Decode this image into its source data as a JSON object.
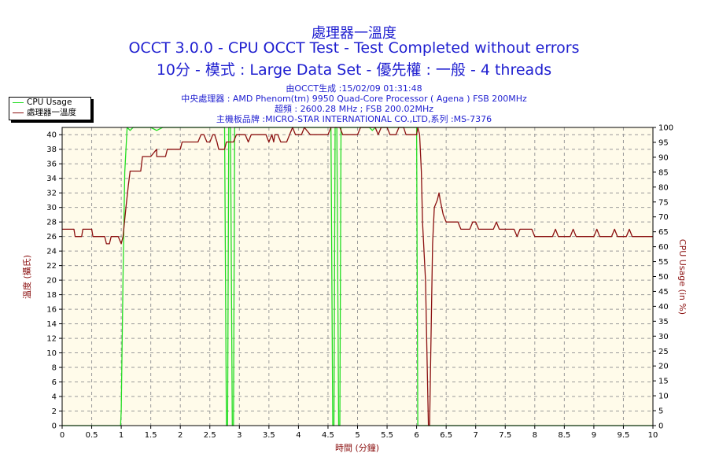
{
  "header": {
    "title_line1": "處理器一溫度",
    "title_line2": "OCCT 3.0.0 - CPU OCCT Test - Test Completed without errors",
    "title_line3": "10分 - 模式 : Large Data Set - 優先權 : 一般 - 4 threads"
  },
  "info": {
    "line1": "由OCCT生成 :15/02/09 01:31:48",
    "line2": "中央處理器 : AMD Phenom(tm) 9950 Quad-Core Processor ( Agena ) FSB 200MHz",
    "line3": "超頻 : 2600.28 MHz ; FSB 200.02MHz",
    "line4": "主機板品牌 :MICRO-STAR INTERNATIONAL CO.,LTD,系列 :MS-7376"
  },
  "legend": {
    "cpu_usage_label": "CPU Usage",
    "temperature_label": "處理器一溫度"
  },
  "colors": {
    "cpu_usage": "#22dd22",
    "temperature": "#8b1010",
    "plot_background": "#fffbea",
    "title_text": "#1f1fd0",
    "axis_label": "#8b1010"
  },
  "chart_data": {
    "type": "line",
    "xlabel": "時間 (分鐘)",
    "ylabel_left": "溫度 (攝氏)",
    "ylabel_right": "CPU Usage (in %)",
    "xlim": [
      0,
      10
    ],
    "ylim_left": [
      0,
      41
    ],
    "ylim_right": [
      0,
      100
    ],
    "x_ticks": [
      "0",
      "0.5",
      "1",
      "1.5",
      "2",
      "2.5",
      "3",
      "3.5",
      "4",
      "4.5",
      "5",
      "5.5",
      "6",
      "6.5",
      "7",
      "7.5",
      "8",
      "8.5",
      "9",
      "9.5",
      "10"
    ],
    "y_left_ticks": [
      "0",
      "2",
      "4",
      "6",
      "8",
      "10",
      "12",
      "14",
      "16",
      "18",
      "20",
      "22",
      "24",
      "26",
      "28",
      "30",
      "32",
      "34",
      "36",
      "38",
      "40"
    ],
    "y_right_ticks": [
      "0",
      "5",
      "10",
      "15",
      "20",
      "25",
      "30",
      "35",
      "40",
      "45",
      "50",
      "55",
      "60",
      "65",
      "70",
      "75",
      "80",
      "85",
      "90",
      "95",
      "100"
    ],
    "grid": true,
    "legend_position": "top-left",
    "series": [
      {
        "name": "處理器一溫度",
        "axis": "left",
        "points": [
          [
            0,
            27
          ],
          [
            0.2,
            27
          ],
          [
            0.22,
            26
          ],
          [
            0.33,
            26
          ],
          [
            0.35,
            27
          ],
          [
            0.5,
            27
          ],
          [
            0.52,
            26
          ],
          [
            0.72,
            26
          ],
          [
            0.75,
            25
          ],
          [
            0.8,
            25
          ],
          [
            0.83,
            26
          ],
          [
            0.95,
            26
          ],
          [
            1,
            25
          ],
          [
            1.03,
            26
          ],
          [
            1.08,
            30
          ],
          [
            1.12,
            33
          ],
          [
            1.15,
            35
          ],
          [
            1.33,
            35
          ],
          [
            1.36,
            37
          ],
          [
            1.5,
            37
          ],
          [
            1.6,
            38
          ],
          [
            1.6,
            37
          ],
          [
            1.75,
            37
          ],
          [
            1.78,
            38
          ],
          [
            2.0,
            38
          ],
          [
            2.03,
            39
          ],
          [
            2.3,
            39
          ],
          [
            2.35,
            40
          ],
          [
            2.4,
            40
          ],
          [
            2.45,
            39
          ],
          [
            2.5,
            39
          ],
          [
            2.55,
            40
          ],
          [
            2.58,
            40
          ],
          [
            2.62,
            39
          ],
          [
            2.65,
            38
          ],
          [
            2.75,
            38
          ],
          [
            2.78,
            39
          ],
          [
            2.9,
            39
          ],
          [
            2.95,
            40
          ],
          [
            3.1,
            40
          ],
          [
            3.15,
            39
          ],
          [
            3.2,
            40
          ],
          [
            3.45,
            40
          ],
          [
            3.5,
            39
          ],
          [
            3.55,
            40
          ],
          [
            3.58,
            39
          ],
          [
            3.6,
            40
          ],
          [
            3.65,
            40
          ],
          [
            3.7,
            39
          ],
          [
            3.8,
            39
          ],
          [
            3.85,
            40
          ],
          [
            3.9,
            41
          ],
          [
            3.95,
            40
          ],
          [
            4.05,
            40
          ],
          [
            4.1,
            41
          ],
          [
            4.2,
            40
          ],
          [
            4.5,
            40
          ],
          [
            4.55,
            41
          ],
          [
            4.7,
            41
          ],
          [
            4.75,
            40
          ],
          [
            5.0,
            40
          ],
          [
            5.05,
            41
          ],
          [
            5.3,
            41
          ],
          [
            5.35,
            40
          ],
          [
            5.4,
            41
          ],
          [
            5.5,
            41
          ],
          [
            5.55,
            40
          ],
          [
            5.65,
            40
          ],
          [
            5.7,
            41
          ],
          [
            5.78,
            41
          ],
          [
            5.82,
            40
          ],
          [
            6.0,
            40
          ],
          [
            6.02,
            41
          ],
          [
            6.05,
            40
          ],
          [
            6.08,
            35
          ],
          [
            6.1,
            28
          ],
          [
            6.15,
            20
          ],
          [
            6.18,
            8
          ],
          [
            6.2,
            0
          ],
          [
            6.22,
            0
          ],
          [
            6.24,
            10
          ],
          [
            6.27,
            25
          ],
          [
            6.3,
            30
          ],
          [
            6.35,
            31
          ],
          [
            6.38,
            32
          ],
          [
            6.4,
            31
          ],
          [
            6.45,
            29
          ],
          [
            6.5,
            28
          ],
          [
            6.55,
            28
          ],
          [
            6.7,
            28
          ],
          [
            6.75,
            27
          ],
          [
            6.9,
            27
          ],
          [
            6.95,
            28
          ],
          [
            7.0,
            28
          ],
          [
            7.05,
            27
          ],
          [
            7.3,
            27
          ],
          [
            7.35,
            28
          ],
          [
            7.4,
            27
          ],
          [
            7.65,
            27
          ],
          [
            7.7,
            26
          ],
          [
            7.75,
            27
          ],
          [
            7.95,
            27
          ],
          [
            8.0,
            26
          ],
          [
            8.3,
            26
          ],
          [
            8.35,
            27
          ],
          [
            8.4,
            26
          ],
          [
            8.6,
            26
          ],
          [
            8.65,
            27
          ],
          [
            8.7,
            26
          ],
          [
            9.0,
            26
          ],
          [
            9.05,
            27
          ],
          [
            9.1,
            26
          ],
          [
            9.3,
            26
          ],
          [
            9.35,
            27
          ],
          [
            9.4,
            26
          ],
          [
            9.55,
            26
          ],
          [
            9.6,
            27
          ],
          [
            9.65,
            26
          ],
          [
            10,
            26
          ]
        ]
      },
      {
        "name": "CPU Usage",
        "axis": "right",
        "points": [
          [
            0,
            0
          ],
          [
            0.99,
            0
          ],
          [
            1.0,
            5
          ],
          [
            1.03,
            50
          ],
          [
            1.06,
            85
          ],
          [
            1.1,
            100
          ],
          [
            1.15,
            99
          ],
          [
            1.2,
            100
          ],
          [
            1.5,
            100
          ],
          [
            1.6,
            99
          ],
          [
            1.7,
            100
          ],
          [
            2.75,
            100
          ],
          [
            2.78,
            0
          ],
          [
            2.8,
            0
          ],
          [
            2.82,
            100
          ],
          [
            2.85,
            100
          ],
          [
            2.88,
            0
          ],
          [
            2.9,
            0
          ],
          [
            2.92,
            100
          ],
          [
            4.55,
            100
          ],
          [
            4.58,
            0
          ],
          [
            4.6,
            0
          ],
          [
            4.62,
            100
          ],
          [
            4.65,
            100
          ],
          [
            4.68,
            0
          ],
          [
            4.7,
            0
          ],
          [
            4.72,
            100
          ],
          [
            5.2,
            100
          ],
          [
            5.25,
            99
          ],
          [
            5.3,
            100
          ],
          [
            6.0,
            100
          ],
          [
            6.02,
            0
          ],
          [
            10,
            0
          ]
        ]
      }
    ]
  }
}
